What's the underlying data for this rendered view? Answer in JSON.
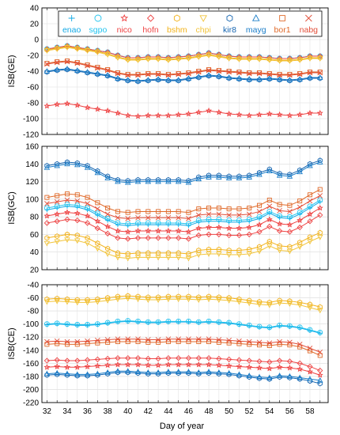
{
  "chart_data": [
    {
      "type": "line",
      "ylabel": "ISB(GE)",
      "xlabel": "",
      "ylim": [
        -120,
        40
      ],
      "yticks": [
        40,
        20,
        0,
        -20,
        -40,
        -60,
        -80,
        -100,
        -120
      ],
      "x": [
        32,
        33,
        34,
        35,
        36,
        37,
        38,
        39,
        40,
        41,
        42,
        43,
        44,
        45,
        46,
        47,
        48,
        49,
        50,
        51,
        52,
        53,
        54,
        55,
        56,
        57,
        58,
        59
      ],
      "legend": {
        "placement": "top",
        "entries": [
          "enao",
          "sgpo",
          "nico",
          "hofn",
          "bshm",
          "chpi",
          "kir8",
          "mayg",
          "bor1",
          "nabg"
        ]
      },
      "series": [
        {
          "name": "enao",
          "values": [
            -12,
            -10,
            -8,
            -10,
            -12,
            -14,
            -16,
            -20,
            -23,
            -23,
            -22,
            -22,
            -23,
            -22,
            -21,
            -19,
            -17,
            -19,
            -21,
            -22,
            -22,
            -22,
            -23,
            -24,
            -24,
            -23,
            -21,
            -21
          ]
        },
        {
          "name": "sgpo",
          "values": [
            -12,
            -10,
            -8,
            -10,
            -12,
            -14,
            -16,
            -20,
            -23,
            -23,
            -22,
            -22,
            -23,
            -22,
            -21,
            -19,
            -17,
            -19,
            -21,
            -22,
            -22,
            -22,
            -23,
            -24,
            -24,
            -23,
            -21,
            -21
          ]
        },
        {
          "name": "nico",
          "values": [
            -84,
            -82,
            -81,
            -83,
            -86,
            -88,
            -90,
            -93,
            -96,
            -97,
            -96,
            -96,
            -96,
            -95,
            -94,
            -92,
            -90,
            -92,
            -94,
            -95,
            -96,
            -95,
            -94,
            -95,
            -96,
            -95,
            -93,
            -93
          ]
        },
        {
          "name": "hofn",
          "values": [
            -12,
            -10,
            -8,
            -10,
            -12,
            -14,
            -16,
            -20,
            -23,
            -23,
            -22,
            -22,
            -23,
            -22,
            -21,
            -19,
            -17,
            -19,
            -21,
            -22,
            -22,
            -22,
            -23,
            -24,
            -24,
            -23,
            -21,
            -21
          ]
        },
        {
          "name": "bshm",
          "values": [
            -13,
            -11,
            -9,
            -11,
            -13,
            -15,
            -18,
            -22,
            -25,
            -25,
            -24,
            -24,
            -25,
            -24,
            -23,
            -21,
            -19,
            -21,
            -23,
            -24,
            -24,
            -24,
            -25,
            -26,
            -26,
            -25,
            -23,
            -23
          ]
        },
        {
          "name": "chpi",
          "values": [
            -14,
            -12,
            -10,
            -12,
            -14,
            -16,
            -19,
            -23,
            -26,
            -26,
            -25,
            -25,
            -26,
            -25,
            -24,
            -22,
            -20,
            -22,
            -24,
            -25,
            -25,
            -25,
            -26,
            -27,
            -27,
            -26,
            -24,
            -24
          ]
        },
        {
          "name": "kir8",
          "values": [
            -41,
            -39,
            -38,
            -40,
            -42,
            -44,
            -46,
            -50,
            -52,
            -53,
            -52,
            -51,
            -52,
            -52,
            -50,
            -48,
            -46,
            -47,
            -49,
            -50,
            -51,
            -51,
            -50,
            -51,
            -52,
            -51,
            -49,
            -49
          ]
        },
        {
          "name": "mayg",
          "values": [
            -40,
            -38,
            -37,
            -39,
            -41,
            -43,
            -45,
            -49,
            -51,
            -52,
            -51,
            -50,
            -51,
            -51,
            -49,
            -47,
            -45,
            -46,
            -48,
            -49,
            -50,
            -50,
            -49,
            -50,
            -51,
            -50,
            -48,
            -48
          ]
        },
        {
          "name": "bor1",
          "values": [
            -30,
            -28,
            -27,
            -29,
            -32,
            -35,
            -38,
            -42,
            -44,
            -44,
            -43,
            -43,
            -44,
            -43,
            -42,
            -40,
            -38,
            -39,
            -40,
            -41,
            -42,
            -42,
            -43,
            -44,
            -44,
            -43,
            -41,
            -41
          ]
        },
        {
          "name": "nabg",
          "values": [
            -31,
            -29,
            -28,
            -30,
            -33,
            -36,
            -39,
            -43,
            -45,
            -45,
            -44,
            -44,
            -45,
            -44,
            -43,
            -41,
            -39,
            -40,
            -41,
            -42,
            -43,
            -43,
            -44,
            -45,
            -45,
            -44,
            -42,
            -42
          ]
        }
      ]
    },
    {
      "type": "line",
      "ylabel": "ISB(GC)",
      "xlabel": "",
      "ylim": [
        20,
        160
      ],
      "yticks": [
        160,
        140,
        120,
        100,
        80,
        60,
        40,
        20
      ],
      "x": [
        32,
        33,
        34,
        35,
        36,
        37,
        38,
        39,
        40,
        41,
        42,
        43,
        44,
        45,
        46,
        47,
        48,
        49,
        50,
        51,
        52,
        53,
        54,
        55,
        56,
        57,
        58,
        59
      ],
      "series": [
        {
          "name": "enao",
          "values": [
            88,
            90,
            92,
            91,
            88,
            82,
            76,
            71,
            70,
            71,
            71,
            71,
            71,
            71,
            70,
            74,
            75,
            75,
            74,
            74,
            75,
            78,
            84,
            79,
            78,
            83,
            90,
            97
          ]
        },
        {
          "name": "sgpo",
          "values": [
            90,
            92,
            94,
            93,
            90,
            84,
            78,
            73,
            72,
            73,
            73,
            73,
            73,
            73,
            72,
            76,
            77,
            77,
            76,
            76,
            77,
            80,
            86,
            81,
            80,
            85,
            92,
            99
          ]
        },
        {
          "name": "nico",
          "values": [
            81,
            83,
            85,
            84,
            81,
            75,
            69,
            64,
            63,
            64,
            64,
            64,
            64,
            64,
            63,
            67,
            68,
            68,
            67,
            67,
            68,
            71,
            77,
            72,
            71,
            76,
            83,
            90
          ]
        },
        {
          "name": "hofn",
          "values": [
            73,
            75,
            77,
            76,
            73,
            67,
            61,
            56,
            55,
            56,
            56,
            56,
            56,
            56,
            55,
            59,
            60,
            60,
            59,
            59,
            60,
            63,
            69,
            64,
            63,
            68,
            75,
            82
          ]
        },
        {
          "name": "bshm",
          "values": [
            56,
            58,
            60,
            59,
            56,
            50,
            44,
            39,
            38,
            39,
            39,
            39,
            39,
            39,
            38,
            42,
            43,
            43,
            42,
            42,
            43,
            46,
            52,
            47,
            46,
            51,
            57,
            62
          ]
        },
        {
          "name": "chpi",
          "values": [
            50,
            52,
            54,
            53,
            50,
            44,
            38,
            34,
            33,
            34,
            34,
            34,
            34,
            34,
            33,
            37,
            38,
            38,
            37,
            37,
            38,
            41,
            47,
            42,
            41,
            46,
            52,
            57
          ]
        },
        {
          "name": "kir8",
          "values": [
            138,
            140,
            142,
            141,
            138,
            132,
            126,
            122,
            121,
            122,
            122,
            122,
            122,
            122,
            121,
            125,
            127,
            127,
            126,
            126,
            127,
            130,
            134,
            129,
            128,
            133,
            140,
            144
          ]
        },
        {
          "name": "mayg",
          "values": [
            136,
            138,
            140,
            139,
            136,
            130,
            124,
            120,
            119,
            120,
            120,
            120,
            120,
            120,
            119,
            123,
            125,
            125,
            124,
            124,
            125,
            128,
            132,
            127,
            126,
            131,
            138,
            142
          ]
        },
        {
          "name": "bor1",
          "values": [
            102,
            104,
            106,
            105,
            102,
            96,
            90,
            86,
            85,
            86,
            86,
            86,
            86,
            86,
            85,
            89,
            90,
            90,
            89,
            89,
            90,
            93,
            99,
            94,
            93,
            98,
            105,
            111
          ]
        },
        {
          "name": "nabg",
          "values": [
            95,
            97,
            99,
            98,
            95,
            89,
            83,
            79,
            78,
            79,
            79,
            79,
            79,
            79,
            78,
            82,
            83,
            83,
            82,
            82,
            83,
            86,
            92,
            87,
            86,
            91,
            98,
            104
          ]
        }
      ]
    },
    {
      "type": "line",
      "ylabel": "ISB(CE)",
      "xlabel": "Day of year",
      "ylim": [
        -220,
        -40
      ],
      "yticks": [
        -40,
        -60,
        -80,
        -100,
        -120,
        -140,
        -160,
        -180,
        -200,
        -220
      ],
      "xticks": [
        32,
        34,
        36,
        38,
        40,
        42,
        44,
        46,
        48,
        50,
        52,
        54,
        56,
        58
      ],
      "x": [
        32,
        33,
        34,
        35,
        36,
        37,
        38,
        39,
        40,
        41,
        42,
        43,
        44,
        45,
        46,
        47,
        48,
        49,
        50,
        51,
        52,
        53,
        54,
        55,
        56,
        57,
        58,
        59
      ],
      "series": [
        {
          "name": "enao",
          "values": [
            -101,
            -100,
            -101,
            -102,
            -102,
            -101,
            -99,
            -97,
            -96,
            -97,
            -98,
            -98,
            -97,
            -97,
            -97,
            -98,
            -97,
            -98,
            -99,
            -101,
            -103,
            -105,
            -106,
            -103,
            -104,
            -106,
            -110,
            -114
          ]
        },
        {
          "name": "sgpo",
          "values": [
            -100,
            -99,
            -100,
            -101,
            -101,
            -100,
            -98,
            -96,
            -95,
            -96,
            -97,
            -97,
            -96,
            -96,
            -96,
            -97,
            -96,
            -97,
            -98,
            -100,
            -102,
            -104,
            -105,
            -102,
            -103,
            -105,
            -109,
            -113
          ]
        },
        {
          "name": "nico",
          "values": [
            -166,
            -165,
            -166,
            -166,
            -165,
            -164,
            -163,
            -162,
            -162,
            -162,
            -163,
            -163,
            -162,
            -162,
            -162,
            -162,
            -162,
            -163,
            -164,
            -165,
            -166,
            -167,
            -168,
            -166,
            -167,
            -169,
            -173,
            -178
          ]
        },
        {
          "name": "hofn",
          "values": [
            -156,
            -155,
            -156,
            -156,
            -155,
            -154,
            -153,
            -152,
            -152,
            -152,
            -153,
            -153,
            -152,
            -152,
            -152,
            -152,
            -152,
            -153,
            -154,
            -155,
            -156,
            -157,
            -158,
            -156,
            -157,
            -160,
            -165,
            -171
          ]
        },
        {
          "name": "bshm",
          "values": [
            -62,
            -61,
            -62,
            -63,
            -63,
            -62,
            -60,
            -58,
            -57,
            -58,
            -59,
            -59,
            -58,
            -58,
            -58,
            -59,
            -58,
            -59,
            -60,
            -62,
            -64,
            -66,
            -67,
            -64,
            -65,
            -67,
            -70,
            -74
          ]
        },
        {
          "name": "chpi",
          "values": [
            -66,
            -65,
            -66,
            -67,
            -67,
            -66,
            -64,
            -62,
            -61,
            -62,
            -63,
            -63,
            -62,
            -62,
            -62,
            -63,
            -62,
            -63,
            -64,
            -66,
            -68,
            -70,
            -71,
            -68,
            -69,
            -71,
            -75,
            -79
          ]
        },
        {
          "name": "kir8",
          "values": [
            -178,
            -177,
            -178,
            -179,
            -179,
            -178,
            -176,
            -174,
            -174,
            -175,
            -176,
            -176,
            -175,
            -175,
            -175,
            -176,
            -175,
            -176,
            -177,
            -179,
            -181,
            -183,
            -184,
            -181,
            -182,
            -184,
            -187,
            -191
          ]
        },
        {
          "name": "mayg",
          "values": [
            -176,
            -175,
            -176,
            -177,
            -177,
            -176,
            -174,
            -172,
            -172,
            -173,
            -174,
            -174,
            -173,
            -173,
            -173,
            -174,
            -173,
            -174,
            -175,
            -177,
            -179,
            -181,
            -182,
            -179,
            -180,
            -182,
            -184,
            -186
          ]
        },
        {
          "name": "bor1",
          "values": [
            -131,
            -130,
            -131,
            -131,
            -130,
            -129,
            -128,
            -127,
            -127,
            -127,
            -128,
            -128,
            -127,
            -127,
            -127,
            -127,
            -127,
            -128,
            -129,
            -130,
            -131,
            -132,
            -133,
            -131,
            -132,
            -135,
            -141,
            -148
          ]
        },
        {
          "name": "nabg",
          "values": [
            -127,
            -126,
            -127,
            -127,
            -126,
            -125,
            -124,
            -123,
            -123,
            -123,
            -124,
            -124,
            -123,
            -123,
            -123,
            -123,
            -123,
            -124,
            -125,
            -126,
            -127,
            -128,
            -129,
            -127,
            -128,
            -131,
            -137,
            -143
          ]
        }
      ]
    }
  ],
  "styles": {
    "enao": {
      "color": "#12a9e6",
      "marker": "plus"
    },
    "sgpo": {
      "color": "#22c4ef",
      "marker": "circle"
    },
    "nico": {
      "color": "#ee3f3f",
      "marker": "star"
    },
    "hofn": {
      "color": "#ee4545",
      "marker": "diamond"
    },
    "bshm": {
      "color": "#f2b21a",
      "marker": "hexagon"
    },
    "chpi": {
      "color": "#f2c43a",
      "marker": "triangle-down"
    },
    "kir8": {
      "color": "#1464b0",
      "marker": "hexagon"
    },
    "mayg": {
      "color": "#1a7dc8",
      "marker": "triangle-up"
    },
    "bor1": {
      "color": "#e06a2a",
      "marker": "square"
    },
    "nabg": {
      "color": "#e24e38",
      "marker": "x"
    }
  }
}
